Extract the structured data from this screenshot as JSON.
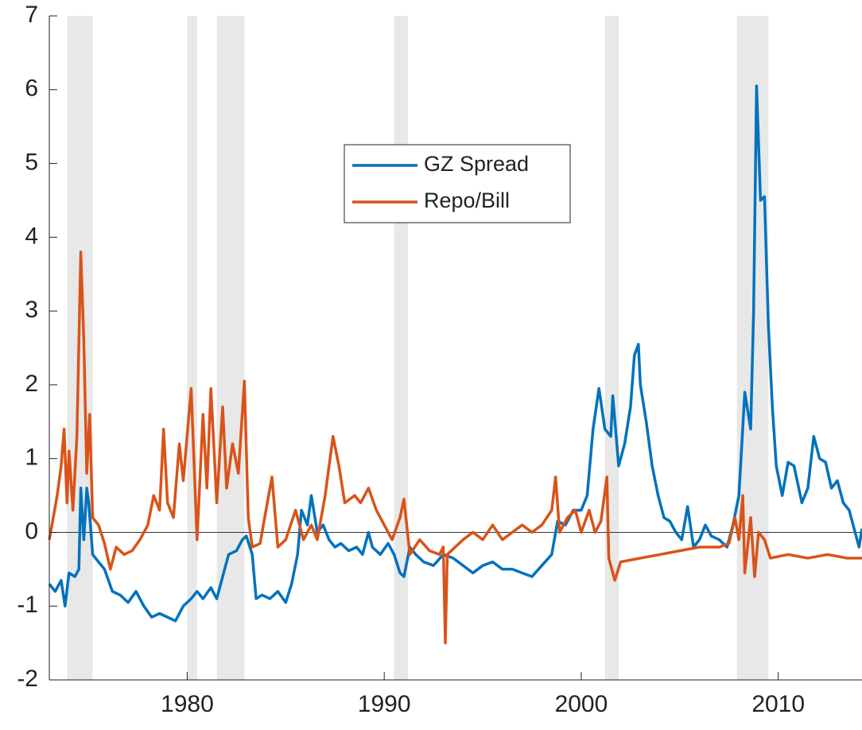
{
  "chart_data": {
    "type": "line",
    "xlim": [
      1973,
      2014.25
    ],
    "xticks": [
      1980,
      1990,
      2000,
      2010
    ],
    "ylim": [
      -2,
      7
    ],
    "yticks": [
      -2,
      -1,
      0,
      1,
      2,
      3,
      4,
      5,
      6,
      7
    ],
    "zero_line": 0,
    "recessions": [
      [
        1973.9,
        1975.2
      ],
      [
        1980.0,
        1980.5
      ],
      [
        1981.5,
        1982.9
      ],
      [
        1990.5,
        1991.2
      ],
      [
        2001.2,
        2001.9
      ],
      [
        2007.9,
        2009.5
      ]
    ],
    "recession_color": "#e8e8e8",
    "series": [
      {
        "name": "GZ Spread",
        "color": "#0072bd",
        "x": [
          1973.0,
          1973.3,
          1973.6,
          1973.8,
          1974.0,
          1974.3,
          1974.5,
          1974.6,
          1974.75,
          1974.9,
          1975.0,
          1975.2,
          1975.5,
          1975.8,
          1976.2,
          1976.6,
          1977.0,
          1977.4,
          1977.8,
          1978.2,
          1978.6,
          1979.0,
          1979.4,
          1979.8,
          1980.2,
          1980.5,
          1980.8,
          1981.2,
          1981.5,
          1981.8,
          1982.1,
          1982.5,
          1982.8,
          1983.0,
          1983.3,
          1983.5,
          1983.8,
          1984.2,
          1984.6,
          1985.0,
          1985.3,
          1985.6,
          1985.8,
          1986.1,
          1986.3,
          1986.6,
          1986.9,
          1987.2,
          1987.5,
          1987.8,
          1988.2,
          1988.6,
          1988.9,
          1989.2,
          1989.4,
          1989.8,
          1990.2,
          1990.5,
          1990.8,
          1991.0,
          1991.3,
          1991.6,
          1992.0,
          1992.5,
          1993.0,
          1993.5,
          1994.0,
          1994.5,
          1995.0,
          1995.5,
          1996.0,
          1996.5,
          1997.0,
          1997.5,
          1998.0,
          1998.5,
          1998.8,
          1999.2,
          1999.6,
          2000.0,
          2000.3,
          2000.6,
          2000.9,
          2001.2,
          2001.5,
          2001.6,
          2001.9,
          2002.2,
          2002.5,
          2002.7,
          2002.9,
          2003.0,
          2003.3,
          2003.6,
          2003.9,
          2004.2,
          2004.5,
          2004.8,
          2005.1,
          2005.4,
          2005.7,
          2006.0,
          2006.3,
          2006.6,
          2007.0,
          2007.4,
          2007.7,
          2008.0,
          2008.3,
          2008.6,
          2008.75,
          2008.9,
          2009.1,
          2009.3,
          2009.5,
          2009.7,
          2009.9,
          2010.2,
          2010.5,
          2010.8,
          2011.2,
          2011.5,
          2011.8,
          2012.1,
          2012.4,
          2012.7,
          2013.0,
          2013.3,
          2013.6,
          2013.9,
          2014.1,
          2014.25
        ],
        "values": [
          -0.7,
          -0.8,
          -0.65,
          -1.0,
          -0.55,
          -0.6,
          -0.5,
          0.6,
          -0.1,
          0.6,
          0.4,
          -0.3,
          -0.4,
          -0.5,
          -0.8,
          -0.85,
          -0.95,
          -0.8,
          -1.0,
          -1.15,
          -1.1,
          -1.15,
          -1.2,
          -1.0,
          -0.9,
          -0.8,
          -0.9,
          -0.75,
          -0.9,
          -0.6,
          -0.3,
          -0.25,
          -0.1,
          -0.05,
          -0.3,
          -0.9,
          -0.85,
          -0.9,
          -0.8,
          -0.95,
          -0.7,
          -0.3,
          0.3,
          0.1,
          0.5,
          0.0,
          0.1,
          -0.1,
          -0.2,
          -0.15,
          -0.25,
          -0.2,
          -0.3,
          0.0,
          -0.2,
          -0.3,
          -0.15,
          -0.3,
          -0.55,
          -0.6,
          -0.2,
          -0.3,
          -0.4,
          -0.45,
          -0.3,
          -0.35,
          -0.45,
          -0.55,
          -0.45,
          -0.4,
          -0.5,
          -0.5,
          -0.55,
          -0.6,
          -0.45,
          -0.3,
          0.15,
          0.1,
          0.3,
          0.3,
          0.5,
          1.4,
          1.95,
          1.4,
          1.3,
          1.85,
          0.9,
          1.2,
          1.7,
          2.4,
          2.55,
          2.0,
          1.5,
          0.9,
          0.5,
          0.2,
          0.15,
          0.0,
          -0.1,
          0.35,
          -0.2,
          -0.1,
          0.1,
          -0.05,
          -0.1,
          -0.2,
          0.1,
          0.5,
          1.9,
          1.4,
          3.0,
          6.05,
          4.5,
          4.55,
          2.8,
          1.7,
          0.9,
          0.5,
          0.95,
          0.9,
          0.4,
          0.6,
          1.3,
          1.0,
          0.95,
          0.6,
          0.7,
          0.4,
          0.3,
          0.0,
          -0.2,
          0.05
        ]
      },
      {
        "name": "Repo/Bill",
        "color": "#d95319",
        "x": [
          1973.0,
          1973.2,
          1973.4,
          1973.6,
          1973.75,
          1973.9,
          1974.0,
          1974.2,
          1974.4,
          1974.6,
          1974.75,
          1974.9,
          1975.05,
          1975.2,
          1975.5,
          1975.8,
          1976.1,
          1976.4,
          1976.8,
          1977.2,
          1977.6,
          1978.0,
          1978.3,
          1978.6,
          1978.8,
          1979.0,
          1979.3,
          1979.6,
          1979.8,
          1980.2,
          1980.5,
          1980.8,
          1981.0,
          1981.2,
          1981.5,
          1981.8,
          1982.0,
          1982.3,
          1982.6,
          1982.9,
          1983.1,
          1983.3,
          1983.7,
          1984.0,
          1984.3,
          1984.6,
          1985.0,
          1985.5,
          1985.9,
          1986.3,
          1986.6,
          1987.0,
          1987.4,
          1987.7,
          1988.0,
          1988.5,
          1988.8,
          1989.2,
          1989.6,
          1990.0,
          1990.4,
          1990.8,
          1991.0,
          1991.3,
          1991.8,
          1992.3,
          1992.8,
          1993.0,
          1993.1,
          1993.2,
          1993.6,
          1994.0,
          1994.5,
          1995.0,
          1995.5,
          1996.0,
          1996.5,
          1997.0,
          1997.5,
          1998.0,
          1998.5,
          1998.7,
          1998.9,
          1999.3,
          1999.7,
          2000.0,
          2000.4,
          2000.7,
          2001.0,
          2001.3,
          2001.4,
          2001.7,
          2002.0,
          2003.0,
          2004.0,
          2005.0,
          2006.0,
          2007.0,
          2007.5,
          2007.8,
          2008.0,
          2008.2,
          2008.3,
          2008.6,
          2008.8,
          2009.0,
          2009.3,
          2009.6,
          2010.5,
          2011.5,
          2012.5,
          2013.5,
          2014.25
        ],
        "values": [
          -0.1,
          0.2,
          0.5,
          0.9,
          1.4,
          0.4,
          1.1,
          0.3,
          1.3,
          3.8,
          2.6,
          0.8,
          1.6,
          0.2,
          0.1,
          -0.15,
          -0.5,
          -0.2,
          -0.3,
          -0.25,
          -0.1,
          0.1,
          0.5,
          0.3,
          1.4,
          0.4,
          0.2,
          1.2,
          0.7,
          1.95,
          -0.1,
          1.6,
          0.6,
          1.95,
          0.4,
          1.7,
          0.6,
          1.2,
          0.8,
          2.05,
          0.2,
          -0.2,
          -0.15,
          0.3,
          0.75,
          -0.2,
          -0.1,
          0.3,
          -0.1,
          0.1,
          -0.1,
          0.5,
          1.3,
          0.9,
          0.4,
          0.5,
          0.4,
          0.6,
          0.3,
          0.1,
          -0.1,
          0.2,
          0.45,
          -0.3,
          -0.1,
          -0.25,
          -0.3,
          -0.2,
          -1.5,
          -0.3,
          -0.2,
          -0.1,
          0.0,
          -0.1,
          0.1,
          -0.1,
          0.0,
          0.1,
          0.0,
          0.1,
          0.3,
          0.75,
          0.0,
          0.2,
          0.3,
          0.0,
          0.3,
          0.0,
          0.15,
          0.75,
          -0.35,
          -0.65,
          -0.4,
          -0.35,
          -0.3,
          -0.25,
          -0.2,
          -0.2,
          -0.15,
          0.2,
          -0.1,
          0.5,
          -0.55,
          0.2,
          -0.6,
          0.0,
          -0.1,
          -0.35,
          -0.3,
          -0.35,
          -0.3,
          -0.35,
          -0.35
        ]
      }
    ]
  }
}
